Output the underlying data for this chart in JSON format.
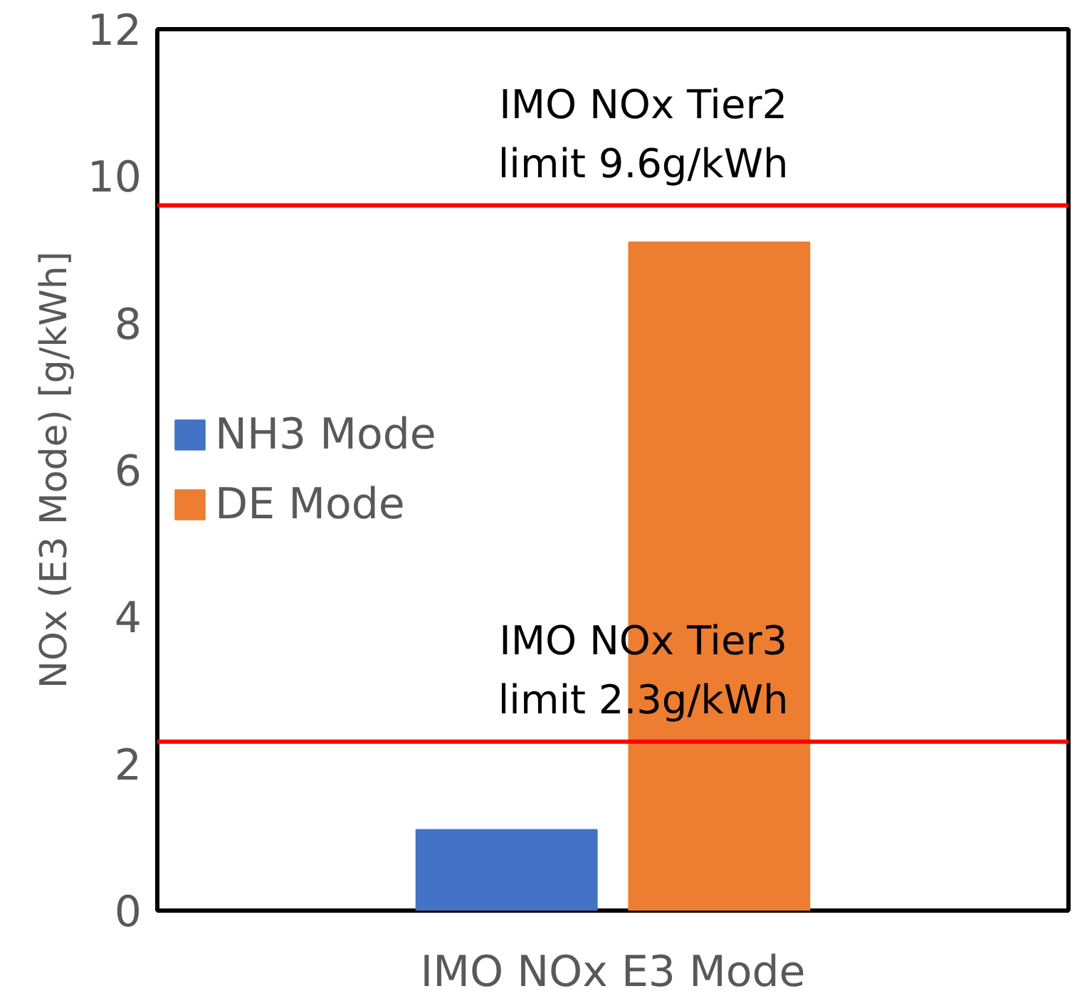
{
  "chart_data": {
    "type": "bar",
    "ylabel": "NOx (E3 Mode) [g/kWh]",
    "categories": [
      "IMO NOx E3 Mode"
    ],
    "series": [
      {
        "name": "NH3 Mode",
        "color": "#4472c4",
        "values": [
          1.1
        ]
      },
      {
        "name": "DE Mode",
        "color": "#ed7d31",
        "values": [
          9.1
        ]
      }
    ],
    "ylim": [
      0,
      12
    ],
    "yticks": [
      0,
      2,
      4,
      6,
      8,
      10,
      12
    ],
    "grid": false,
    "legend": "left",
    "ref_lines": [
      {
        "axis": "y",
        "value": 9.6,
        "label": "IMO NOx Tier2\nlimit 9.6g/kWh",
        "color": "#ff0000"
      },
      {
        "axis": "y",
        "value": 2.3,
        "label": "IMO NOx Tier3\nlimit 2.3g/kWh",
        "color": "#ff0000"
      }
    ]
  }
}
